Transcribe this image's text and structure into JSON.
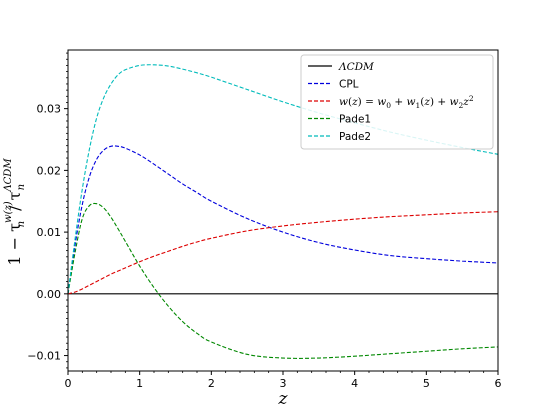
{
  "chart_data": {
    "type": "line",
    "title": "",
    "xlabel": "z",
    "ylabel": "1 − τ_n^{w(z)} / τ_n^{ΛCDM}",
    "xlim": [
      0,
      6
    ],
    "ylim": [
      -0.0125,
      0.0395
    ],
    "xticks": [
      0,
      1,
      2,
      3,
      4,
      5,
      6
    ],
    "xtick_labels": [
      "0",
      "1",
      "2",
      "3",
      "4",
      "5",
      "6"
    ],
    "yticks": [
      -0.01,
      0.0,
      0.01,
      0.02,
      0.03
    ],
    "ytick_labels": [
      "−0.01",
      "0.00",
      "0.01",
      "0.02",
      "0.03"
    ],
    "grid": false,
    "legend_position": "top-right",
    "x": [
      0,
      0.1,
      0.2,
      0.3,
      0.4,
      0.5,
      0.6,
      0.7,
      0.8,
      1.0,
      1.2,
      1.4,
      1.6,
      1.8,
      2.0,
      2.5,
      3.0,
      3.5,
      4.0,
      4.5,
      5.0,
      5.5,
      6.0
    ],
    "series": [
      {
        "name": "ΛCDM",
        "color": "#000000",
        "style": "solid",
        "values": [
          0,
          0,
          0,
          0,
          0,
          0,
          0,
          0,
          0,
          0,
          0,
          0,
          0,
          0,
          0,
          0,
          0,
          0,
          0,
          0,
          0,
          0,
          0
        ]
      },
      {
        "name": "CPL",
        "color": "#0000dd",
        "style": "dashed",
        "values": [
          0,
          0.008,
          0.0145,
          0.019,
          0.0218,
          0.0233,
          0.0239,
          0.0239,
          0.0236,
          0.0225,
          0.021,
          0.0194,
          0.0178,
          0.0164,
          0.015,
          0.0122,
          0.01,
          0.0083,
          0.0071,
          0.0062,
          0.0057,
          0.0053,
          0.005
        ]
      },
      {
        "name": "w(z) = w0 + w1(z) + w2 z^2",
        "color": "#dd0000",
        "style": "dashed",
        "values": [
          0,
          0.0003,
          0.0008,
          0.0014,
          0.002,
          0.0026,
          0.0032,
          0.0037,
          0.0042,
          0.0052,
          0.0061,
          0.0069,
          0.0077,
          0.0084,
          0.009,
          0.0102,
          0.011,
          0.0116,
          0.0121,
          0.0125,
          0.0128,
          0.0131,
          0.0133
        ]
      },
      {
        "name": "Pade1",
        "color": "#008800",
        "style": "dashed",
        "values": [
          0,
          0.0068,
          0.0122,
          0.0143,
          0.0146,
          0.0139,
          0.0124,
          0.0105,
          0.0085,
          0.0045,
          0.001,
          -0.002,
          -0.0045,
          -0.0064,
          -0.0078,
          -0.0098,
          -0.0104,
          -0.0104,
          -0.0101,
          -0.0097,
          -0.0093,
          -0.0089,
          -0.0086
        ]
      },
      {
        "name": "Pade2",
        "color": "#00bbbb",
        "style": "dashed",
        "values": [
          0,
          0.009,
          0.017,
          0.0235,
          0.0285,
          0.0318,
          0.034,
          0.0355,
          0.0363,
          0.037,
          0.0371,
          0.0369,
          0.0364,
          0.0358,
          0.0351,
          0.0331,
          0.0311,
          0.0293,
          0.0277,
          0.0262,
          0.0249,
          0.0237,
          0.0226
        ]
      }
    ]
  }
}
